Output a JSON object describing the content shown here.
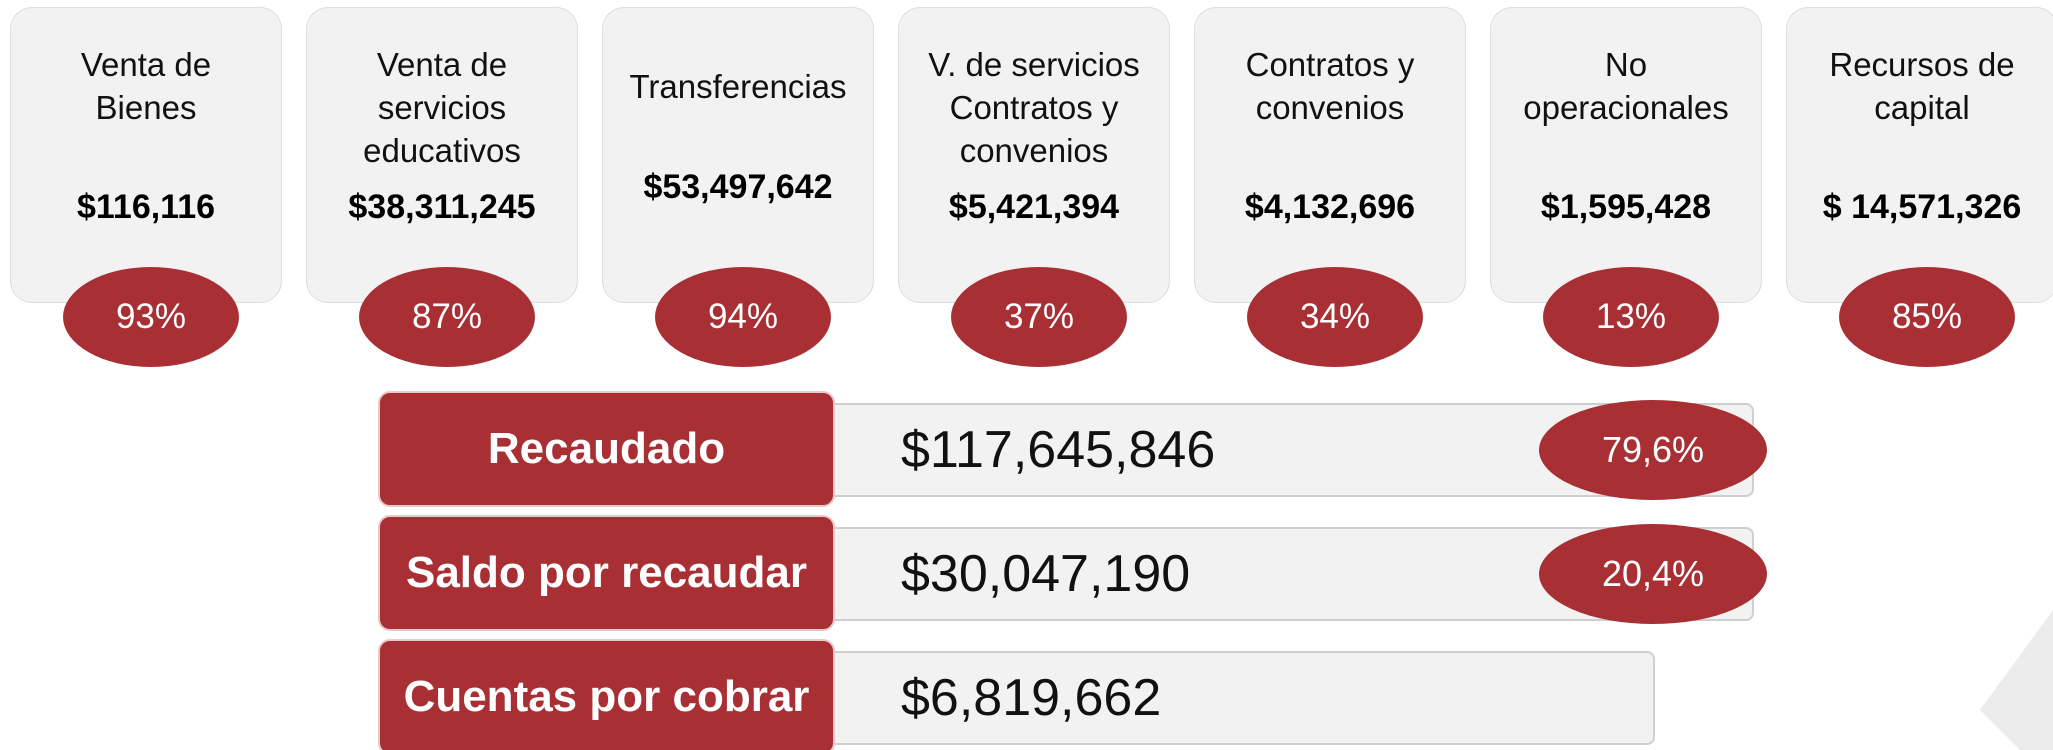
{
  "cards": [
    {
      "title": [
        "Venta de",
        "Bienes"
      ],
      "amount": "$116,116",
      "percent": "93%"
    },
    {
      "title": [
        "Venta de",
        "servicios",
        "educativos"
      ],
      "amount": "$38,311,245",
      "percent": "87%"
    },
    {
      "title": [
        "Transferencias"
      ],
      "amount": "$53,497,642",
      "percent": "94%"
    },
    {
      "title": [
        "V. de servicios",
        "Contratos y",
        "convenios"
      ],
      "amount": "$5,421,394",
      "percent": "37%"
    },
    {
      "title": [
        "Contratos y",
        "convenios"
      ],
      "amount": "$4,132,696",
      "percent": "34%"
    },
    {
      "title": [
        "No",
        "operacionales"
      ],
      "amount": "$1,595,428",
      "percent": "13%"
    },
    {
      "title": [
        "Recursos de",
        "capital"
      ],
      "amount": "$ 14,571,326",
      "percent": "85%"
    }
  ],
  "rows": [
    {
      "label": "Recaudado",
      "amount": "$117,645,846",
      "percent": "79,6%"
    },
    {
      "label": "Saldo por recaudar",
      "amount": "$30,047,190",
      "percent": "20,4%"
    },
    {
      "label": "Cuentas por cobrar",
      "amount": "$6,819,662"
    }
  ]
}
